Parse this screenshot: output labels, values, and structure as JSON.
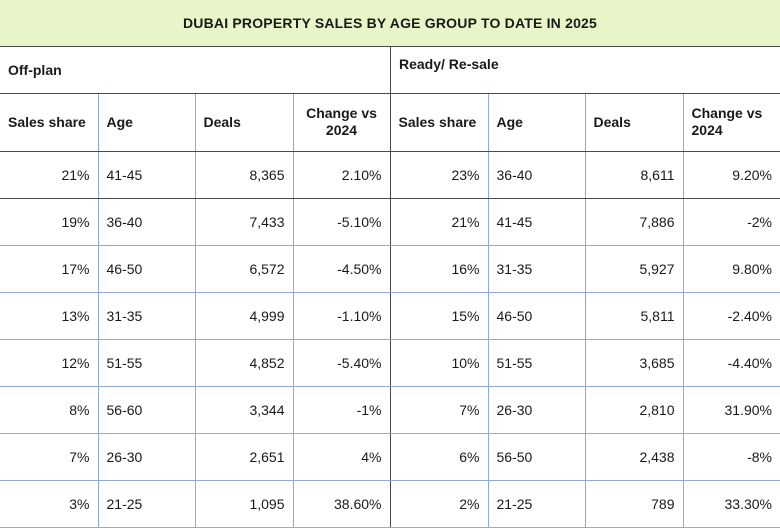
{
  "title": "DUBAI PROPERTY SALES BY AGE GROUP TO DATE IN 2025",
  "sections": {
    "offplan": "Off-plan",
    "ready": "Ready/ Re-sale"
  },
  "headers": {
    "sales_share": "Sales share",
    "age": "Age",
    "deals": "Deals",
    "change_line1": "Change vs",
    "change_line2": "2024"
  },
  "rows": [
    {
      "op_share": "21%",
      "op_age": "41-45",
      "op_deals": "8,365",
      "op_change": "2.10%",
      "rs_share": "23%",
      "rs_age": "36-40",
      "rs_deals": "8,611",
      "rs_change": "9.20%"
    },
    {
      "op_share": "19%",
      "op_age": "36-40",
      "op_deals": "7,433",
      "op_change": "-5.10%",
      "rs_share": "21%",
      "rs_age": "41-45",
      "rs_deals": "7,886",
      "rs_change": "-2%"
    },
    {
      "op_share": "17%",
      "op_age": "46-50",
      "op_deals": "6,572",
      "op_change": "-4.50%",
      "rs_share": "16%",
      "rs_age": "31-35",
      "rs_deals": "5,927",
      "rs_change": "9.80%"
    },
    {
      "op_share": "13%",
      "op_age": "31-35",
      "op_deals": "4,999",
      "op_change": "-1.10%",
      "rs_share": "15%",
      "rs_age": "46-50",
      "rs_deals": "5,811",
      "rs_change": "-2.40%"
    },
    {
      "op_share": "12%",
      "op_age": "51-55",
      "op_deals": "4,852",
      "op_change": "-5.40%",
      "rs_share": "10%",
      "rs_age": "51-55",
      "rs_deals": "3,685",
      "rs_change": "-4.40%"
    },
    {
      "op_share": "8%",
      "op_age": "56-60",
      "op_deals": "3,344",
      "op_change": "-1%",
      "rs_share": "7%",
      "rs_age": "26-30",
      "rs_deals": "2,810",
      "rs_change": "31.90%"
    },
    {
      "op_share": "7%",
      "op_age": "26-30",
      "op_deals": "2,651",
      "op_change": "4%",
      "rs_share": "6%",
      "rs_age": "56-50",
      "rs_deals": "2,438",
      "rs_change": "-8%"
    },
    {
      "op_share": "3%",
      "op_age": "21-25",
      "op_deals": "1,095",
      "op_change": "38.60%",
      "rs_share": "2%",
      "rs_age": "21-25",
      "rs_deals": "789",
      "rs_change": "33.30%"
    }
  ]
}
